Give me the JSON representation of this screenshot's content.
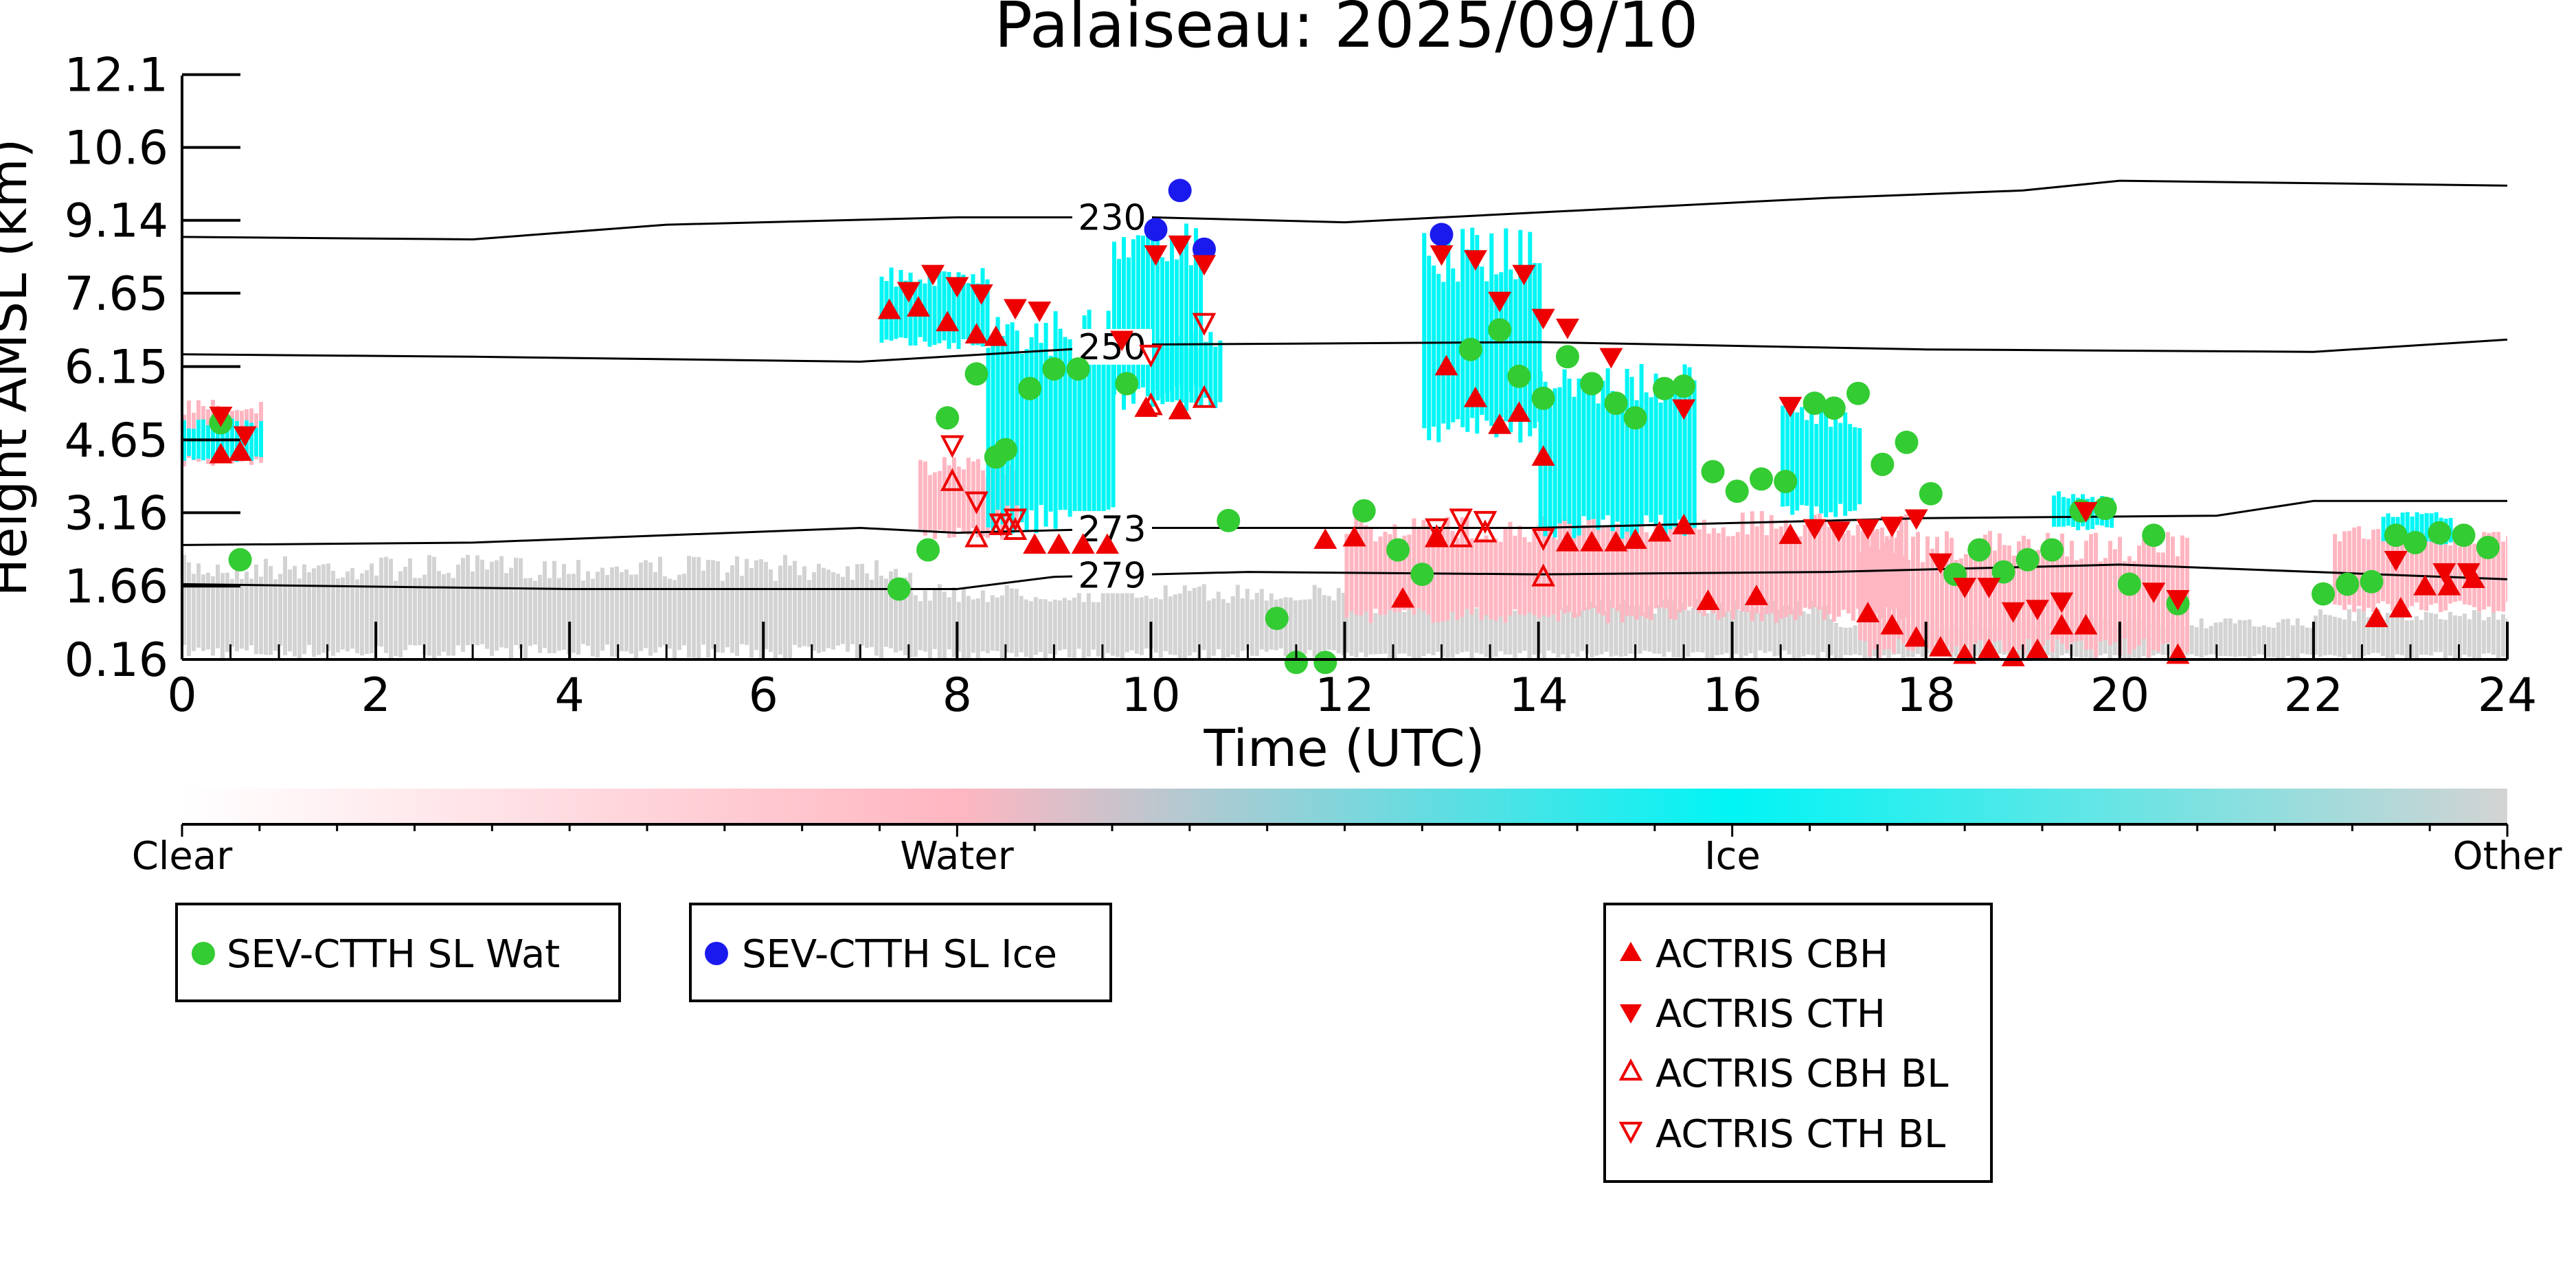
{
  "chart_data": {
    "type": "scatter",
    "title": "Palaiseau: 2025/09/10",
    "xlabel": "Time (UTC)",
    "ylabel": "Height AMSL (km)",
    "xlim": [
      0,
      24
    ],
    "ylim": [
      0.16,
      12.1
    ],
    "x_ticks": [
      "0",
      "2",
      "4",
      "6",
      "8",
      "10",
      "12",
      "14",
      "16",
      "18",
      "20",
      "22",
      "24"
    ],
    "y_ticks": [
      "0.16",
      "1.66",
      "3.16",
      "4.65",
      "6.15",
      "7.65",
      "9.14",
      "10.6",
      "12.1"
    ],
    "y_tick_values": [
      0.16,
      1.66,
      3.16,
      4.65,
      6.15,
      7.65,
      9.14,
      10.63,
      12.12
    ],
    "grid": false,
    "colorbar": {
      "labels": [
        "Clear",
        "Water",
        "Ice",
        "Other"
      ],
      "colors": {
        "clear": "#ffffff",
        "water": "#ffb6c1",
        "ice": "#00f5f5",
        "other": "#d3d3d3"
      }
    },
    "cloud_mask": {
      "water": [
        {
          "t0": 0.0,
          "t1": 0.8,
          "h0": 4.1,
          "h1": 5.5
        },
        {
          "t0": 7.6,
          "t1": 8.6,
          "h0": 2.6,
          "h1": 4.3
        },
        {
          "t0": 12.0,
          "t1": 14.2,
          "h0": 0.9,
          "h1": 3.1
        },
        {
          "t0": 14.2,
          "t1": 17.8,
          "h0": 0.9,
          "h1": 3.2
        },
        {
          "t0": 17.3,
          "t1": 20.7,
          "h0": 0.2,
          "h1": 2.8
        },
        {
          "t0": 22.2,
          "t1": 24.0,
          "h0": 1.1,
          "h1": 2.9
        }
      ],
      "ice": [
        {
          "t0": 0.0,
          "t1": 0.8,
          "h0": 4.2,
          "h1": 5.1
        },
        {
          "t0": 7.2,
          "t1": 8.3,
          "h0": 6.5,
          "h1": 8.2
        },
        {
          "t0": 8.3,
          "t1": 9.6,
          "h0": 2.6,
          "h1": 7.5
        },
        {
          "t0": 9.6,
          "t1": 10.5,
          "h0": 5.2,
          "h1": 9.2
        },
        {
          "t0": 10.0,
          "t1": 10.7,
          "h0": 5.3,
          "h1": 6.9
        },
        {
          "t0": 12.8,
          "t1": 14.0,
          "h0": 4.5,
          "h1": 9.0
        },
        {
          "t0": 14.0,
          "t1": 15.6,
          "h0": 2.6,
          "h1": 6.2
        },
        {
          "t0": 16.5,
          "t1": 17.3,
          "h0": 3.0,
          "h1": 5.5
        },
        {
          "t0": 19.3,
          "t1": 19.9,
          "h0": 2.8,
          "h1": 3.6
        },
        {
          "t0": 22.7,
          "t1": 23.4,
          "h0": 2.5,
          "h1": 3.2
        }
      ],
      "other": [
        {
          "t0": 0.0,
          "t1": 7.5,
          "h0": 0.16,
          "h1": 2.3
        },
        {
          "t0": 7.5,
          "t1": 12.0,
          "h0": 0.16,
          "h1": 1.7
        },
        {
          "t0": 12.0,
          "t1": 17.0,
          "h0": 0.16,
          "h1": 1.4
        },
        {
          "t0": 17.0,
          "t1": 22.0,
          "h0": 0.16,
          "h1": 1.0
        },
        {
          "t0": 22.0,
          "t1": 24.0,
          "h0": 0.16,
          "h1": 1.2
        }
      ]
    },
    "contours": [
      {
        "label": "230",
        "label_x": 9.6,
        "points": [
          [
            0,
            8.8
          ],
          [
            3,
            8.75
          ],
          [
            5,
            9.05
          ],
          [
            8,
            9.2
          ],
          [
            10,
            9.2
          ],
          [
            12,
            9.1
          ],
          [
            14,
            9.3
          ],
          [
            17,
            9.6
          ],
          [
            19,
            9.75
          ],
          [
            20,
            9.95
          ],
          [
            24,
            9.85
          ]
        ]
      },
      {
        "label": "250",
        "label_x": 9.6,
        "points": [
          [
            0,
            6.4
          ],
          [
            3,
            6.35
          ],
          [
            7,
            6.25
          ],
          [
            10,
            6.6
          ],
          [
            14,
            6.65
          ],
          [
            18,
            6.5
          ],
          [
            22,
            6.45
          ],
          [
            24,
            6.7
          ]
        ]
      },
      {
        "label": "273",
        "label_x": 9.6,
        "points": [
          [
            0,
            2.5
          ],
          [
            3,
            2.55
          ],
          [
            7,
            2.85
          ],
          [
            8,
            2.75
          ],
          [
            10,
            2.85
          ],
          [
            14,
            2.85
          ],
          [
            18,
            3.05
          ],
          [
            21,
            3.1
          ],
          [
            22,
            3.4
          ],
          [
            24,
            3.4
          ]
        ]
      },
      {
        "label": "279",
        "label_x": 9.6,
        "points": [
          [
            0,
            1.7
          ],
          [
            4,
            1.6
          ],
          [
            8,
            1.6
          ],
          [
            9,
            1.85
          ],
          [
            11,
            1.95
          ],
          [
            14,
            1.9
          ],
          [
            17,
            1.95
          ],
          [
            20,
            2.1
          ],
          [
            24,
            1.8
          ]
        ]
      }
    ],
    "series": [
      {
        "name": "SEV-CTTH SL Wat",
        "marker": "filled-circle",
        "color": "#33cc33",
        "points": [
          [
            0.4,
            5.0
          ],
          [
            0.6,
            2.2
          ],
          [
            7.4,
            1.6
          ],
          [
            7.7,
            2.4
          ],
          [
            7.9,
            5.1
          ],
          [
            8.2,
            6.0
          ],
          [
            8.4,
            4.3
          ],
          [
            8.5,
            4.45
          ],
          [
            8.75,
            5.7
          ],
          [
            9.0,
            6.1
          ],
          [
            9.25,
            6.1
          ],
          [
            9.75,
            5.8
          ],
          [
            10.8,
            3.0
          ],
          [
            11.3,
            1.0
          ],
          [
            11.5,
            0.1
          ],
          [
            11.8,
            0.1
          ],
          [
            12.2,
            3.2
          ],
          [
            12.55,
            2.4
          ],
          [
            12.8,
            1.9
          ],
          [
            13.3,
            6.5
          ],
          [
            13.6,
            6.9
          ],
          [
            13.8,
            5.95
          ],
          [
            14.05,
            5.5
          ],
          [
            14.3,
            6.35
          ],
          [
            14.55,
            5.8
          ],
          [
            14.8,
            5.4
          ],
          [
            15.0,
            5.1
          ],
          [
            15.3,
            5.7
          ],
          [
            15.5,
            5.75
          ],
          [
            15.8,
            4.0
          ],
          [
            16.05,
            3.6
          ],
          [
            16.3,
            3.85
          ],
          [
            16.55,
            3.8
          ],
          [
            16.85,
            5.4
          ],
          [
            17.05,
            5.3
          ],
          [
            17.3,
            5.6
          ],
          [
            17.55,
            4.15
          ],
          [
            17.8,
            4.6
          ],
          [
            18.05,
            3.55
          ],
          [
            18.3,
            1.9
          ],
          [
            18.55,
            2.4
          ],
          [
            18.8,
            1.95
          ],
          [
            19.05,
            2.2
          ],
          [
            19.3,
            2.4
          ],
          [
            19.6,
            3.2
          ],
          [
            19.85,
            3.25
          ],
          [
            20.1,
            1.7
          ],
          [
            20.35,
            2.7
          ],
          [
            20.6,
            1.3
          ],
          [
            22.1,
            1.5
          ],
          [
            22.35,
            1.7
          ],
          [
            22.6,
            1.75
          ],
          [
            22.85,
            2.7
          ],
          [
            23.05,
            2.55
          ],
          [
            23.3,
            2.75
          ],
          [
            23.55,
            2.7
          ],
          [
            23.8,
            2.45
          ]
        ]
      },
      {
        "name": "SEV-CTTH SL Ice",
        "marker": "filled-circle",
        "color": "#1a1aee",
        "points": [
          [
            10.05,
            8.95
          ],
          [
            10.3,
            9.75
          ],
          [
            10.55,
            8.55
          ],
          [
            13.0,
            8.85
          ]
        ]
      },
      {
        "name": "ACTRIS CBH",
        "marker": "filled-triangle-up",
        "color": "#ee0000",
        "points": [
          [
            0.4,
            4.35
          ],
          [
            0.6,
            4.4
          ],
          [
            7.3,
            7.3
          ],
          [
            7.6,
            7.35
          ],
          [
            7.9,
            7.05
          ],
          [
            8.2,
            6.8
          ],
          [
            8.4,
            6.75
          ],
          [
            8.8,
            2.5
          ],
          [
            9.05,
            2.5
          ],
          [
            9.3,
            2.5
          ],
          [
            9.55,
            2.5
          ],
          [
            9.95,
            5.3
          ],
          [
            10.3,
            5.25
          ],
          [
            11.8,
            2.6
          ],
          [
            12.1,
            2.65
          ],
          [
            12.6,
            1.4
          ],
          [
            12.95,
            2.65
          ],
          [
            13.05,
            6.15
          ],
          [
            13.35,
            5.5
          ],
          [
            13.6,
            4.95
          ],
          [
            13.8,
            5.2
          ],
          [
            14.05,
            4.3
          ],
          [
            14.3,
            2.55
          ],
          [
            14.55,
            2.55
          ],
          [
            14.8,
            2.55
          ],
          [
            15.0,
            2.6
          ],
          [
            15.25,
            2.75
          ],
          [
            15.5,
            2.9
          ],
          [
            15.75,
            1.35
          ],
          [
            16.25,
            1.45
          ],
          [
            16.6,
            2.7
          ],
          [
            17.4,
            1.1
          ],
          [
            17.65,
            0.85
          ],
          [
            17.9,
            0.6
          ],
          [
            18.15,
            0.4
          ],
          [
            18.4,
            0.25
          ],
          [
            18.65,
            0.35
          ],
          [
            18.9,
            0.2
          ],
          [
            19.15,
            0.35
          ],
          [
            19.4,
            0.85
          ],
          [
            19.65,
            0.85
          ],
          [
            20.6,
            0.25
          ],
          [
            22.65,
            1.0
          ],
          [
            22.9,
            1.2
          ],
          [
            23.15,
            1.65
          ],
          [
            23.4,
            1.65
          ],
          [
            23.65,
            1.8
          ]
        ]
      },
      {
        "name": "ACTRIS CTH",
        "marker": "filled-triangle-down",
        "color": "#ee0000",
        "points": [
          [
            0.4,
            5.15
          ],
          [
            0.65,
            4.75
          ],
          [
            7.5,
            7.7
          ],
          [
            7.75,
            8.05
          ],
          [
            8.0,
            7.8
          ],
          [
            8.25,
            7.65
          ],
          [
            8.6,
            7.35
          ],
          [
            8.85,
            7.3
          ],
          [
            9.7,
            6.7
          ],
          [
            10.05,
            8.45
          ],
          [
            10.3,
            8.65
          ],
          [
            10.55,
            8.25
          ],
          [
            13.0,
            8.45
          ],
          [
            13.35,
            8.35
          ],
          [
            13.6,
            7.5
          ],
          [
            13.85,
            8.05
          ],
          [
            14.05,
            7.15
          ],
          [
            14.3,
            6.95
          ],
          [
            14.75,
            6.35
          ],
          [
            15.5,
            5.3
          ],
          [
            16.6,
            5.35
          ],
          [
            16.85,
            2.85
          ],
          [
            17.1,
            2.8
          ],
          [
            17.4,
            2.85
          ],
          [
            17.65,
            2.9
          ],
          [
            17.9,
            3.05
          ],
          [
            18.15,
            2.15
          ],
          [
            18.4,
            1.65
          ],
          [
            18.65,
            1.65
          ],
          [
            18.9,
            1.15
          ],
          [
            19.15,
            1.2
          ],
          [
            19.4,
            1.35
          ],
          [
            19.65,
            3.2
          ],
          [
            20.35,
            1.55
          ],
          [
            20.6,
            1.4
          ],
          [
            22.85,
            2.2
          ],
          [
            23.35,
            1.95
          ],
          [
            23.6,
            1.95
          ]
        ]
      },
      {
        "name": "ACTRIS CBH BL",
        "marker": "open-triangle-up",
        "color": "#ee0000",
        "points": [
          [
            7.95,
            3.8
          ],
          [
            8.2,
            2.65
          ],
          [
            8.45,
            2.9
          ],
          [
            8.6,
            2.8
          ],
          [
            10.0,
            5.35
          ],
          [
            10.55,
            5.5
          ],
          [
            12.95,
            2.65
          ],
          [
            13.2,
            2.65
          ],
          [
            13.45,
            2.75
          ],
          [
            14.05,
            1.85
          ]
        ]
      },
      {
        "name": "ACTRIS CTH BL",
        "marker": "open-triangle-down",
        "color": "#ee0000",
        "points": [
          [
            7.95,
            4.55
          ],
          [
            8.2,
            3.4
          ],
          [
            8.45,
            2.95
          ],
          [
            8.6,
            3.05
          ],
          [
            10.0,
            6.4
          ],
          [
            10.55,
            7.05
          ],
          [
            12.95,
            2.85
          ],
          [
            13.2,
            3.05
          ],
          [
            13.45,
            3.0
          ],
          [
            14.05,
            2.65
          ]
        ]
      }
    ],
    "legends": [
      {
        "entries": [
          "SEV-CTTH SL Wat"
        ]
      },
      {
        "entries": [
          "SEV-CTTH SL Ice"
        ]
      },
      {
        "entries": [
          "ACTRIS CBH",
          "ACTRIS CTH",
          "ACTRIS CBH BL",
          "ACTRIS CTH BL"
        ]
      }
    ]
  }
}
